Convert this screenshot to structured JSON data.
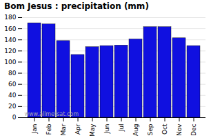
{
  "chart_data": {
    "type": "bar",
    "title": "Bom Jesus : precipitation (mm)",
    "categories": [
      "Jan",
      "Feb",
      "Mar",
      "Apr",
      "May",
      "Jun",
      "Jul",
      "Aug",
      "Sep",
      "Oct",
      "Nov",
      "Dec"
    ],
    "values": [
      170,
      168,
      138,
      113,
      127,
      129,
      130,
      141,
      163,
      163,
      143,
      129
    ],
    "color": "#1010e0",
    "ylim": [
      0,
      180
    ],
    "yticks": [
      0,
      20,
      40,
      60,
      80,
      100,
      120,
      140,
      160,
      180
    ],
    "grid": true,
    "annotation": "www.allmetsat.com"
  }
}
